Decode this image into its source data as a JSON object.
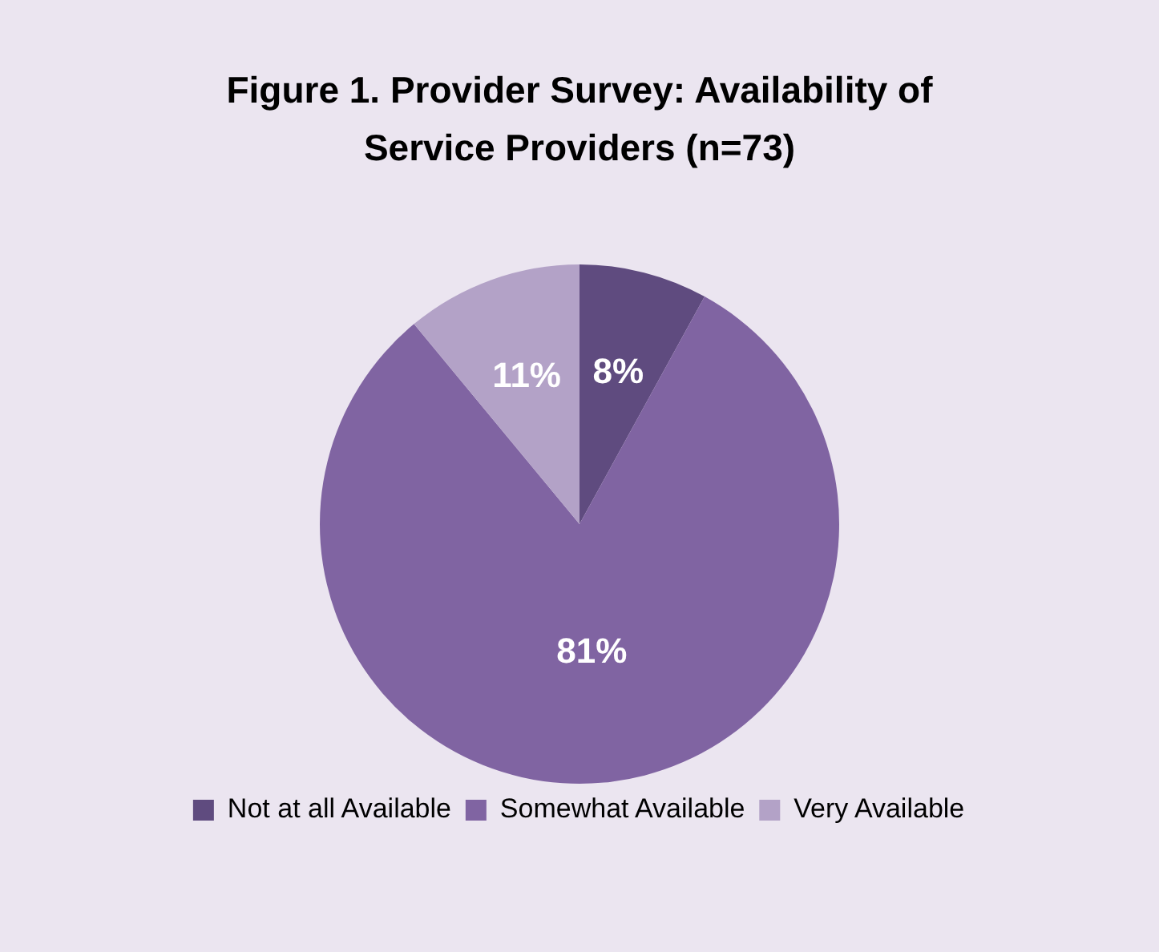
{
  "chart_data": {
    "type": "pie",
    "title": "Figure 1. Provider Survey: Availability of Service Providers (n=73)",
    "categories": [
      "Not at all Available",
      "Somewhat Available",
      "Very Available"
    ],
    "values": [
      8,
      81,
      11
    ],
    "value_labels": [
      "8%",
      "81%",
      "11%"
    ],
    "colors": [
      "#5f4b7f",
      "#8064a2",
      "#b3a2c7"
    ],
    "legend": "bottom"
  }
}
